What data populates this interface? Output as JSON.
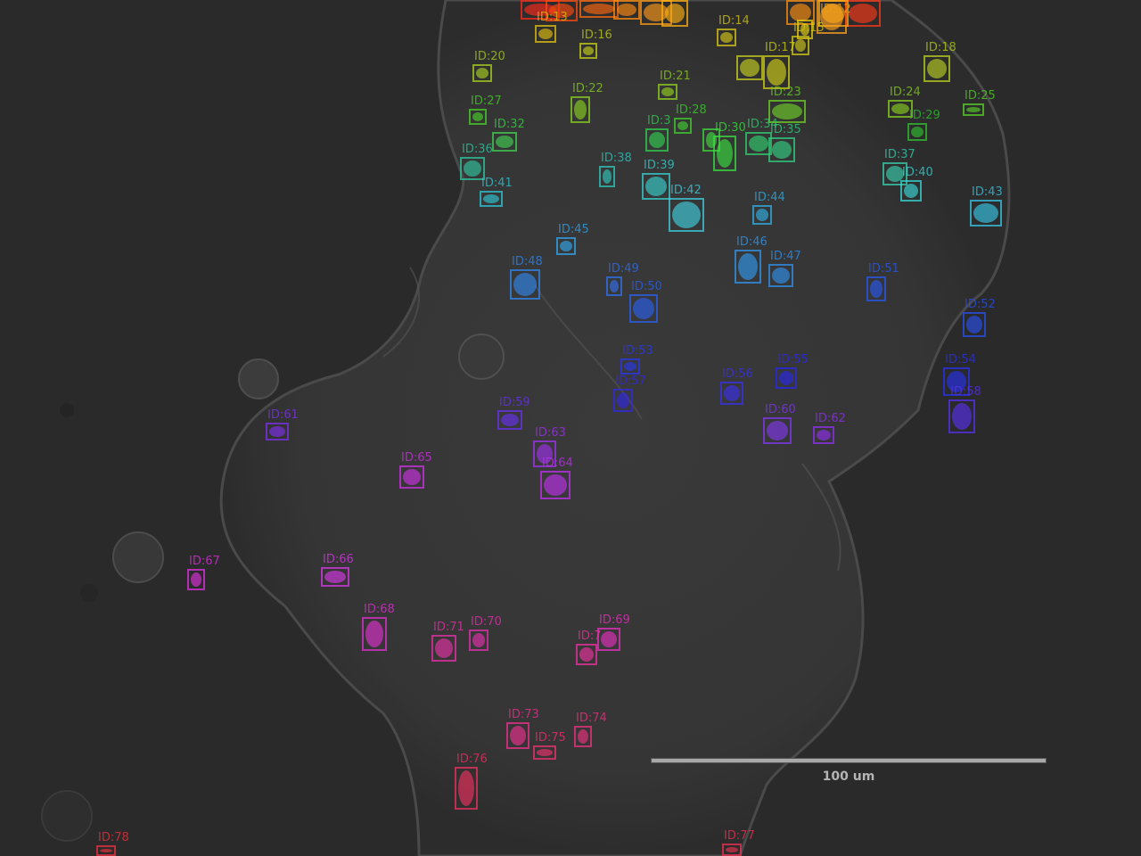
{
  "image": {
    "scale_bar": {
      "label": "100 um"
    },
    "cells": [
      {
        "id": "",
        "color": "#ff2a1a"
      },
      {
        "id": "",
        "color": "#ff4a10"
      },
      {
        "id": "",
        "color": "#ff6a10"
      },
      {
        "id": "",
        "color": "#ff8a10"
      },
      {
        "id": "",
        "color": "#ff9a18"
      },
      {
        "id": "",
        "color": "#ffb010"
      },
      {
        "id": "",
        "color": "#ff9010"
      },
      {
        "id": "",
        "color": "#ffa020"
      },
      {
        "id": "",
        "color": "#ff3818"
      },
      {
        "id": "ID:12",
        "color": "#ffa818"
      },
      {
        "id": "ID:13",
        "color": "#e0c010"
      },
      {
        "id": "ID:14",
        "color": "#d8c818"
      },
      {
        "id": "",
        "color": "#e8d010"
      },
      {
        "id": "ID:15",
        "color": "#d0c818"
      },
      {
        "id": "ID:16",
        "color": "#c8d018"
      },
      {
        "id": "ID:17",
        "color": "#d0d018"
      },
      {
        "id": "",
        "color": "#c8d020"
      },
      {
        "id": "ID:18",
        "color": "#b8d020"
      },
      {
        "id": "ID:20",
        "color": "#a8d020"
      },
      {
        "id": "ID:21",
        "color": "#90d020"
      },
      {
        "id": "ID:22",
        "color": "#88d020"
      },
      {
        "id": "ID:23",
        "color": "#70d028"
      },
      {
        "id": "ID:24",
        "color": "#88d020"
      },
      {
        "id": "ID:25",
        "color": "#58d028"
      },
      {
        "id": "ID:27",
        "color": "#48d028"
      },
      {
        "id": "ID:28",
        "color": "#40d030"
      },
      {
        "id": "ID:29",
        "color": "#30c030"
      },
      {
        "id": "",
        "color": "#40d840"
      },
      {
        "id": "ID:30",
        "color": "#38e040"
      },
      {
        "id": "ID:32",
        "color": "#40d050"
      },
      {
        "id": "ID:3",
        "color": "#30d050"
      },
      {
        "id": "ID:34",
        "color": "#30d070"
      },
      {
        "id": "ID:35",
        "color": "#30d080"
      },
      {
        "id": "ID:36",
        "color": "#30c8a0"
      },
      {
        "id": "ID:37",
        "color": "#38d0b0"
      },
      {
        "id": "ID:38",
        "color": "#30c8c0"
      },
      {
        "id": "ID:39",
        "color": "#38d0d0"
      },
      {
        "id": "ID:40",
        "color": "#38d8d8"
      },
      {
        "id": "ID:41",
        "color": "#30c8d8"
      },
      {
        "id": "ID:42",
        "color": "#40d0e0"
      },
      {
        "id": "ID:43",
        "color": "#38c8e8"
      },
      {
        "id": "ID:44",
        "color": "#30b0e8"
      },
      {
        "id": "ID:45",
        "color": "#30a8f0"
      },
      {
        "id": "ID:46",
        "color": "#3098f0"
      },
      {
        "id": "ID:47",
        "color": "#3090f0"
      },
      {
        "id": "ID:48",
        "color": "#3088f0"
      },
      {
        "id": "ID:49",
        "color": "#3070f0"
      },
      {
        "id": "ID:50",
        "color": "#2860f0"
      },
      {
        "id": "ID:51",
        "color": "#2858f0"
      },
      {
        "id": "ID:52",
        "color": "#2850f0"
      },
      {
        "id": "ID:53",
        "color": "#2838f0"
      },
      {
        "id": "ID:54",
        "color": "#2830f0"
      },
      {
        "id": "ID:55",
        "color": "#2828f0"
      },
      {
        "id": "ID:56",
        "color": "#3830f0"
      },
      {
        "id": "ID:57",
        "color": "#3028e8"
      },
      {
        "id": "ID:58",
        "color": "#5830f0"
      },
      {
        "id": "ID:59",
        "color": "#6830f0"
      },
      {
        "id": "ID:60",
        "color": "#8038f0"
      },
      {
        "id": "ID:61",
        "color": "#8030f0"
      },
      {
        "id": "ID:62",
        "color": "#9030f0"
      },
      {
        "id": "ID:63",
        "color": "#a030f0"
      },
      {
        "id": "ID:64",
        "color": "#c030f0"
      },
      {
        "id": "ID:65",
        "color": "#d030e8"
      },
      {
        "id": "ID:66",
        "color": "#d838e8"
      },
      {
        "id": "ID:67",
        "color": "#e030e0"
      },
      {
        "id": "ID:68",
        "color": "#e030d0"
      },
      {
        "id": "ID:69",
        "color": "#e830c0"
      },
      {
        "id": "ID:70",
        "color": "#e830b0"
      },
      {
        "id": "ID:71",
        "color": "#e830a8"
      },
      {
        "id": "ID:7",
        "color": "#f030a0"
      },
      {
        "id": "ID:73",
        "color": "#f03090"
      },
      {
        "id": "ID:74",
        "color": "#f03080"
      },
      {
        "id": "ID:75",
        "color": "#f03070"
      },
      {
        "id": "ID:76",
        "color": "#f03060"
      },
      {
        "id": "ID:77",
        "color": "#f03050"
      },
      {
        "id": "ID:78",
        "color": "#f03040"
      }
    ]
  }
}
